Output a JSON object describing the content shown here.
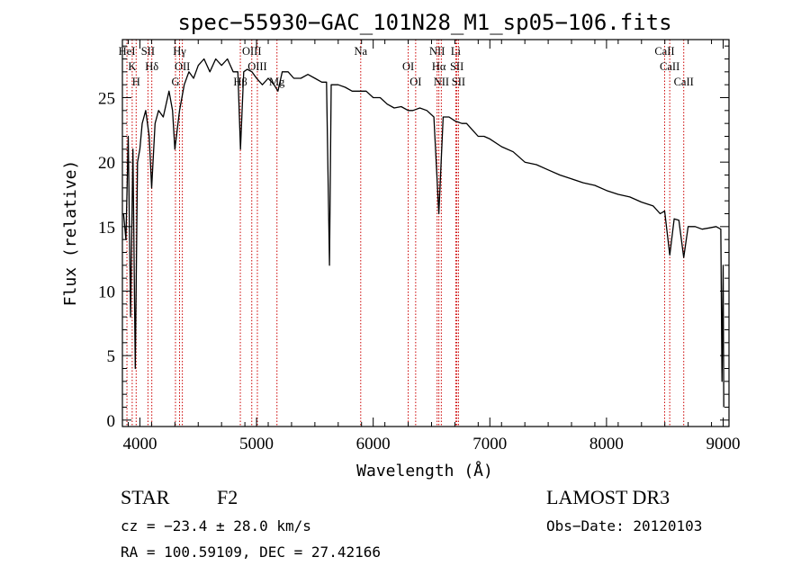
{
  "chart_data": {
    "type": "line",
    "title": "spec−55930−GAC_101N28_M1_sp05−106.fits",
    "xlabel": "Wavelength (Å)",
    "ylabel": "Flux (relative)",
    "xlim": [
      3850,
      9050
    ],
    "ylim": [
      -0.5,
      29.5
    ],
    "x_ticks": [
      4000,
      5000,
      6000,
      7000,
      8000,
      9000
    ],
    "y_ticks": [
      0,
      5,
      10,
      15,
      20,
      25
    ],
    "series": [
      {
        "name": "flux",
        "x": [
          3860,
          3880,
          3900,
          3920,
          3940,
          3960,
          3980,
          4000,
          4020,
          4050,
          4080,
          4101,
          4130,
          4160,
          4200,
          4250,
          4280,
          4300,
          4340,
          4380,
          4420,
          4460,
          4500,
          4550,
          4600,
          4650,
          4700,
          4750,
          4800,
          4840,
          4862,
          4890,
          4920,
          4960,
          5000,
          5050,
          5100,
          5150,
          5183,
          5220,
          5270,
          5320,
          5380,
          5440,
          5500,
          5560,
          5600,
          5625,
          5640,
          5700,
          5760,
          5820,
          5880,
          5940,
          6000,
          6060,
          6120,
          6180,
          6240,
          6300,
          6340,
          6400,
          6460,
          6520,
          6563,
          6600,
          6650,
          6700,
          6760,
          6800,
          6850,
          6900,
          6950,
          7000,
          7100,
          7200,
          7300,
          7400,
          7500,
          7600,
          7700,
          7800,
          7900,
          8000,
          8100,
          8200,
          8300,
          8400,
          8460,
          8498,
          8542,
          8580,
          8620,
          8662,
          8700,
          8760,
          8820,
          8880,
          8940,
          8980,
          8990,
          9000,
          9005
        ],
        "values": [
          16,
          14,
          22,
          8,
          21,
          4,
          20,
          21,
          23,
          24,
          22,
          18,
          23,
          24,
          23.5,
          25.5,
          24,
          21,
          24,
          26,
          27,
          26.5,
          27.5,
          28,
          27,
          28,
          27.5,
          28,
          27,
          27,
          21,
          27,
          27.2,
          27,
          26.5,
          26,
          26.5,
          26,
          25.5,
          27,
          27,
          26.5,
          26.5,
          26.8,
          26.5,
          26.2,
          26.2,
          12,
          26,
          26,
          25.8,
          25.5,
          25.5,
          25.5,
          25,
          25,
          24.5,
          24.2,
          24.3,
          24,
          24,
          24.2,
          24,
          23.5,
          16,
          23.5,
          23.5,
          23.2,
          23,
          23,
          22.5,
          22,
          22,
          21.8,
          21.2,
          20.8,
          20,
          19.8,
          19.4,
          19,
          18.7,
          18.4,
          18.2,
          17.8,
          17.5,
          17.3,
          16.9,
          16.6,
          16,
          16.2,
          12.8,
          15.6,
          15.5,
          12.6,
          15,
          15,
          14.8,
          14.9,
          15,
          14.8,
          3,
          12,
          1
        ]
      }
    ],
    "spectral_lines": [
      {
        "name": "HeI",
        "wavelength": 3889
      },
      {
        "name": "K",
        "wavelength": 3934
      },
      {
        "name": "H",
        "wavelength": 3968
      },
      {
        "name": "SII",
        "wavelength": 4069
      },
      {
        "name": "Hδ",
        "wavelength": 4102
      },
      {
        "name": "G",
        "wavelength": 4305
      },
      {
        "name": "OII",
        "wavelength": 4364
      },
      {
        "name": "Hγ",
        "wavelength": 4340
      },
      {
        "name": "Hβ",
        "wavelength": 4861
      },
      {
        "name": "OIII",
        "wavelength": 4959
      },
      {
        "name": "OIII",
        "wavelength": 5007
      },
      {
        "name": "Mg",
        "wavelength": 5175
      },
      {
        "name": "Na",
        "wavelength": 5893
      },
      {
        "name": "OI",
        "wavelength": 6300
      },
      {
        "name": "OI",
        "wavelength": 6364
      },
      {
        "name": "NII",
        "wavelength": 6548
      },
      {
        "name": "Hα",
        "wavelength": 6563
      },
      {
        "name": "NII",
        "wavelength": 6584
      },
      {
        "name": "Li",
        "wavelength": 6708
      },
      {
        "name": "SII",
        "wavelength": 6717
      },
      {
        "name": "SII",
        "wavelength": 6731
      },
      {
        "name": "CaII",
        "wavelength": 8498
      },
      {
        "name": "CaII",
        "wavelength": 8542
      },
      {
        "name": "CaII",
        "wavelength": 8662
      }
    ]
  },
  "footer": {
    "class_label": "STAR",
    "subclass": "F2",
    "survey": "LAMOST DR3",
    "cz": "cz = −23.4 ± 28.0 km/s",
    "obs_date": "Obs−Date: 20120103",
    "radec": "RA = 100.59109, DEC =  27.42166"
  },
  "colors": {
    "axes": "#000000",
    "spectrum": "#000000",
    "line_markers": "#cc0000",
    "background": "#ffffff"
  }
}
